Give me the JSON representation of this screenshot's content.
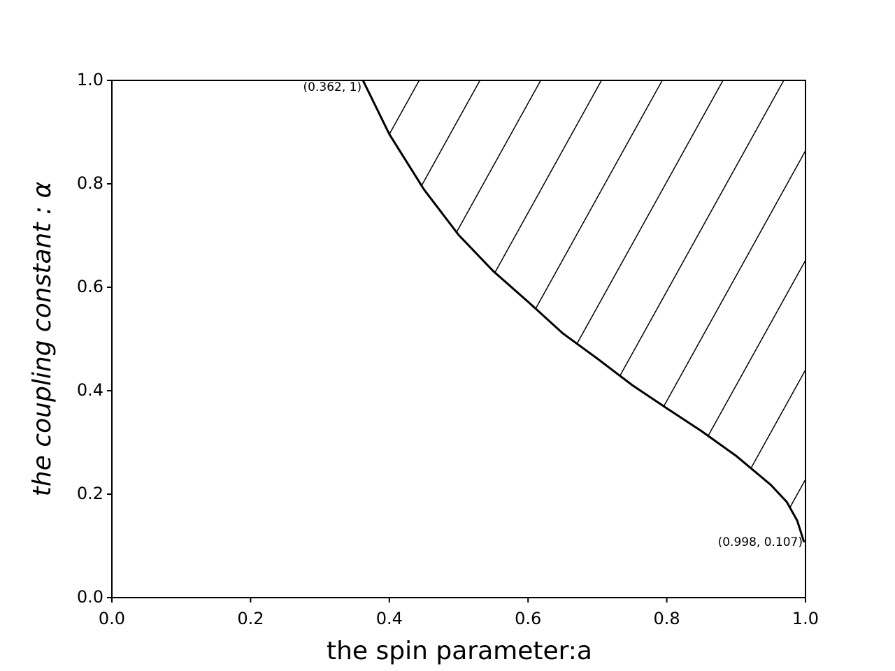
{
  "chart_data": {
    "type": "line",
    "xlabel": "the spin parameter:a",
    "ylabel": "the coupling constant : α",
    "x": [
      0.362,
      0.4,
      0.45,
      0.5,
      0.55,
      0.6,
      0.65,
      0.7,
      0.75,
      0.8,
      0.85,
      0.9,
      0.95,
      0.973,
      0.988,
      0.998
    ],
    "series": [
      {
        "color": "#000000",
        "values": [
          1,
          0.896,
          0.789,
          0.701,
          0.631,
          0.572,
          0.511,
          0.462,
          0.411,
          0.366,
          0.322,
          0.274,
          0.218,
          0.185,
          0.149,
          0.107
        ]
      }
    ],
    "annotations": [
      "(0.362, 1)",
      "(0.998, 0.107)"
    ],
    "xlim": [
      0,
      1
    ],
    "ylim": [
      0,
      1
    ],
    "xticks": [
      {
        "value": 0,
        "label": "0.0"
      },
      {
        "value": 0.2,
        "label": "0.2"
      },
      {
        "value": 0.4,
        "label": "0.4"
      },
      {
        "value": 0.6,
        "label": "0.6"
      },
      {
        "value": 0.8,
        "label": "0.8"
      },
      {
        "value": 1,
        "label": "1.0"
      }
    ],
    "yticks": [
      {
        "value": 0,
        "label": "0.0"
      },
      {
        "value": 0.2,
        "label": "0.2"
      },
      {
        "value": 0.4,
        "label": "0.4"
      },
      {
        "value": 0.6,
        "label": "0.6"
      },
      {
        "value": 0.8,
        "label": "0.8"
      },
      {
        "value": 1,
        "label": "1.0"
      }
    ],
    "hatch": true
  }
}
